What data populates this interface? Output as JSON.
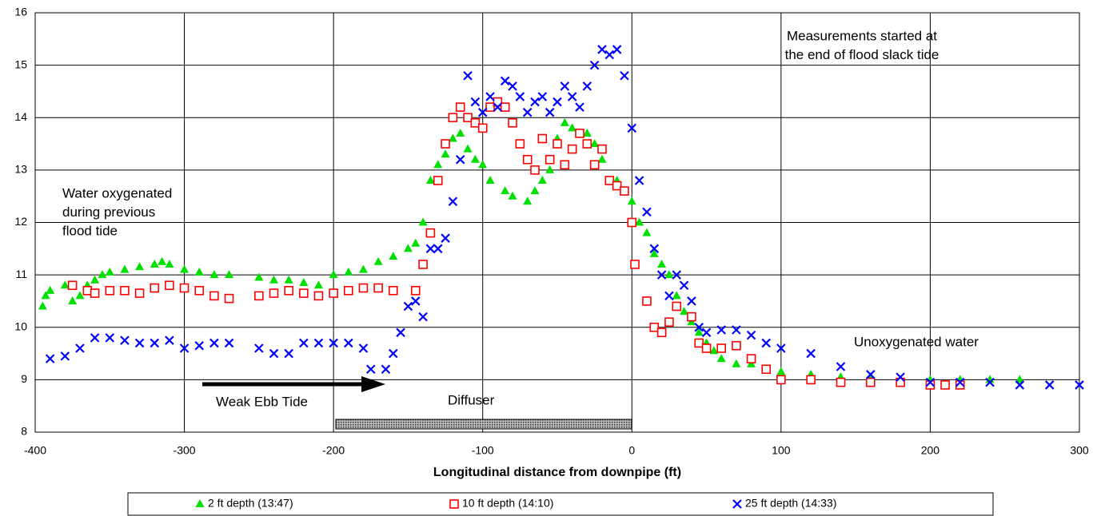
{
  "chart_data": {
    "type": "scatter",
    "x_label": "Longitudinal distance from downpipe (ft)",
    "xlim": [
      -400,
      300
    ],
    "xticks": [
      -400,
      -300,
      -200,
      -100,
      0,
      100,
      200,
      300
    ],
    "ylim": [
      8,
      16
    ],
    "yticks": [
      8,
      9,
      10,
      11,
      12,
      13,
      14,
      15,
      16
    ],
    "grid": true,
    "legend": "bottom",
    "annotations": [
      [
        "Water oxygenated",
        "during previous",
        "flood tide"
      ],
      [
        "Measurements started at",
        "the end of flood slack tide"
      ],
      [
        "Unoxygenated water"
      ],
      [
        "Weak Ebb Tide"
      ],
      [
        "Diffuser"
      ]
    ],
    "series": [
      {
        "name": "2 ft depth (13:47)",
        "color": "#00e000",
        "marker": "triangle",
        "x": [
          -395,
          -393,
          -390,
          -380,
          -375,
          -370,
          -365,
          -360,
          -355,
          -350,
          -340,
          -330,
          -320,
          -315,
          -310,
          -300,
          -290,
          -280,
          -270,
          -250,
          -240,
          -230,
          -220,
          -210,
          -200,
          -190,
          -180,
          -170,
          -160,
          -150,
          -145,
          -140,
          -135,
          -130,
          -125,
          -120,
          -115,
          -110,
          -105,
          -100,
          -95,
          -85,
          -80,
          -70,
          -65,
          -60,
          -55,
          -50,
          -45,
          -40,
          -30,
          -25,
          -20,
          -10,
          0,
          5,
          10,
          15,
          20,
          25,
          30,
          35,
          40,
          45,
          50,
          55,
          60,
          70,
          80,
          90,
          100,
          120,
          140,
          160,
          180,
          200,
          220,
          240,
          260
        ],
        "values": [
          10.4,
          10.6,
          10.7,
          10.8,
          10.5,
          10.6,
          10.8,
          10.9,
          11.0,
          11.05,
          11.1,
          11.15,
          11.2,
          11.25,
          11.2,
          11.1,
          11.05,
          11.0,
          11.0,
          10.95,
          10.9,
          10.9,
          10.85,
          10.8,
          11.0,
          11.05,
          11.1,
          11.25,
          11.35,
          11.5,
          11.6,
          12.0,
          12.8,
          13.1,
          13.3,
          13.6,
          13.7,
          13.4,
          13.2,
          13.1,
          12.8,
          12.6,
          12.5,
          12.4,
          12.6,
          12.8,
          13.0,
          13.6,
          13.9,
          13.8,
          13.7,
          13.5,
          13.2,
          12.8,
          12.4,
          12.0,
          11.8,
          11.4,
          11.2,
          11.0,
          10.6,
          10.3,
          10.1,
          9.9,
          9.7,
          9.55,
          9.4,
          9.3,
          9.3,
          9.2,
          9.15,
          9.1,
          9.05,
          9.05,
          9.0,
          9.0,
          9.0,
          9.0,
          9.0
        ]
      },
      {
        "name": "10 ft depth (14:10)",
        "color": "#ff0000",
        "marker": "square",
        "x": [
          -375,
          -365,
          -360,
          -350,
          -340,
          -330,
          -320,
          -310,
          -300,
          -290,
          -280,
          -270,
          -250,
          -240,
          -230,
          -220,
          -210,
          -200,
          -190,
          -180,
          -170,
          -160,
          -145,
          -140,
          -135,
          -130,
          -125,
          -120,
          -115,
          -110,
          -105,
          -100,
          -95,
          -90,
          -85,
          -80,
          -75,
          -70,
          -65,
          -60,
          -55,
          -50,
          -45,
          -40,
          -35,
          -30,
          -25,
          -20,
          -15,
          -10,
          -5,
          0,
          2,
          10,
          15,
          20,
          25,
          30,
          40,
          45,
          50,
          60,
          70,
          80,
          90,
          100,
          120,
          140,
          160,
          180,
          200,
          210,
          220
        ],
        "values": [
          10.8,
          10.7,
          10.65,
          10.7,
          10.7,
          10.65,
          10.75,
          10.8,
          10.75,
          10.7,
          10.6,
          10.55,
          10.6,
          10.65,
          10.7,
          10.65,
          10.6,
          10.65,
          10.7,
          10.75,
          10.75,
          10.7,
          10.7,
          11.2,
          11.8,
          12.8,
          13.5,
          14.0,
          14.2,
          14.0,
          13.9,
          13.8,
          14.2,
          14.3,
          14.2,
          13.9,
          13.5,
          13.2,
          13.0,
          13.6,
          13.2,
          13.5,
          13.1,
          13.4,
          13.7,
          13.5,
          13.1,
          13.4,
          12.8,
          12.7,
          12.6,
          12.0,
          11.2,
          10.5,
          10.0,
          9.9,
          10.1,
          10.4,
          10.2,
          9.7,
          9.6,
          9.6,
          9.65,
          9.4,
          9.2,
          9.0,
          9.0,
          8.95,
          8.95,
          8.95,
          8.9,
          8.9,
          8.9
        ]
      },
      {
        "name": "25 ft depth (14:33)",
        "color": "#0000ff",
        "marker": "x",
        "x": [
          -390,
          -380,
          -370,
          -360,
          -350,
          -340,
          -330,
          -320,
          -310,
          -300,
          -290,
          -280,
          -270,
          -250,
          -240,
          -230,
          -220,
          -210,
          -200,
          -190,
          -180,
          -175,
          -165,
          -160,
          -155,
          -150,
          -145,
          -140,
          -135,
          -130,
          -125,
          -120,
          -115,
          -110,
          -105,
          -100,
          -95,
          -90,
          -85,
          -80,
          -75,
          -70,
          -65,
          -60,
          -55,
          -50,
          -45,
          -40,
          -35,
          -30,
          -25,
          -20,
          -15,
          -10,
          -5,
          0,
          5,
          10,
          15,
          20,
          25,
          30,
          35,
          40,
          45,
          50,
          60,
          70,
          80,
          90,
          100,
          120,
          140,
          160,
          180,
          200,
          220,
          240,
          260,
          280,
          300
        ],
        "values": [
          9.4,
          9.45,
          9.6,
          9.8,
          9.8,
          9.75,
          9.7,
          9.7,
          9.75,
          9.6,
          9.65,
          9.7,
          9.7,
          9.6,
          9.5,
          9.5,
          9.7,
          9.7,
          9.7,
          9.7,
          9.6,
          9.2,
          9.2,
          9.5,
          9.9,
          10.4,
          10.5,
          10.2,
          11.5,
          11.5,
          11.7,
          12.4,
          13.2,
          14.8,
          14.3,
          14.1,
          14.4,
          14.2,
          14.7,
          14.6,
          14.4,
          14.1,
          14.3,
          14.4,
          14.1,
          14.3,
          14.6,
          14.4,
          14.2,
          14.6,
          15.0,
          15.3,
          15.2,
          15.3,
          14.8,
          13.8,
          12.8,
          12.2,
          11.5,
          11.0,
          10.6,
          11.0,
          10.8,
          10.5,
          10.0,
          9.9,
          9.95,
          9.95,
          9.85,
          9.7,
          9.6,
          9.5,
          9.25,
          9.1,
          9.05,
          8.95,
          8.95,
          8.95,
          8.9,
          8.9,
          8.9
        ]
      }
    ]
  }
}
